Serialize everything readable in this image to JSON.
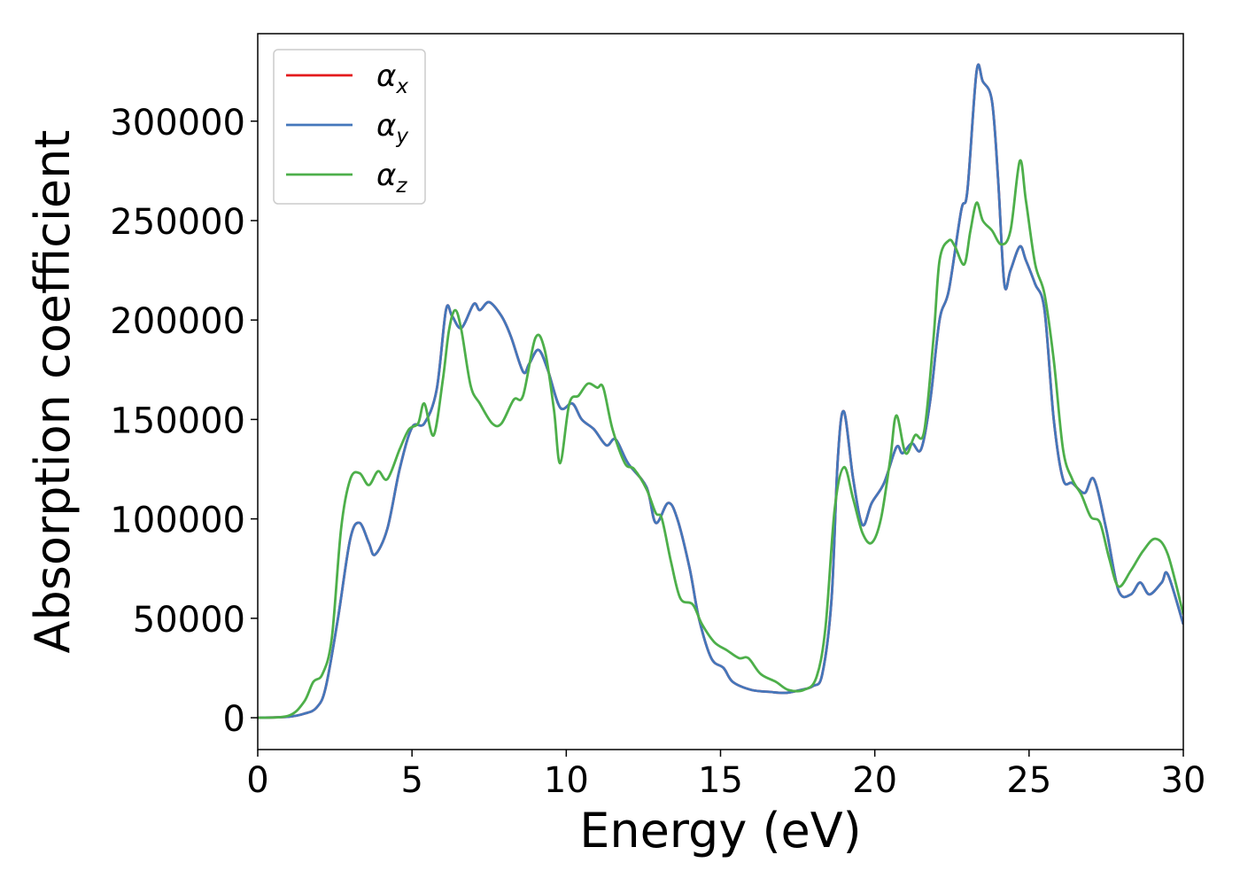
{
  "chart_data": {
    "type": "line",
    "title": "",
    "xlabel": "Energy (eV)",
    "ylabel": "Absorption coefficient",
    "xlim": [
      0,
      30
    ],
    "ylim": [
      -16000,
      344000
    ],
    "xticks": [
      "0",
      "5",
      "10",
      "15",
      "20",
      "25",
      "30"
    ],
    "xtick_values": [
      0,
      5,
      10,
      15,
      20,
      25,
      30
    ],
    "yticks": [
      "0",
      "50000",
      "100000",
      "150000",
      "200000",
      "250000",
      "300000"
    ],
    "ytick_values": [
      0,
      50000,
      100000,
      150000,
      200000,
      250000,
      300000
    ],
    "grid": false,
    "legend_position": "top-left",
    "series": [
      {
        "name": "α",
        "subscript": "x",
        "color": "#e41a1c",
        "points": [
          [
            0,
            0
          ],
          [
            1,
            500
          ],
          [
            1.5,
            2000
          ],
          [
            1.9,
            5000
          ],
          [
            2.2,
            15000
          ],
          [
            2.6,
            50000
          ],
          [
            3.0,
            90000
          ],
          [
            3.3,
            98000
          ],
          [
            3.6,
            88000
          ],
          [
            3.8,
            82000
          ],
          [
            4.2,
            95000
          ],
          [
            4.6,
            125000
          ],
          [
            5.0,
            146000
          ],
          [
            5.4,
            148000
          ],
          [
            5.8,
            165000
          ],
          [
            6.1,
            205000
          ],
          [
            6.3,
            202000
          ],
          [
            6.6,
            196000
          ],
          [
            7.0,
            208000
          ],
          [
            7.2,
            205000
          ],
          [
            7.5,
            209000
          ],
          [
            7.9,
            202000
          ],
          [
            8.2,
            192000
          ],
          [
            8.6,
            174000
          ],
          [
            8.8,
            178000
          ],
          [
            9.1,
            185000
          ],
          [
            9.4,
            175000
          ],
          [
            9.8,
            156000
          ],
          [
            10.2,
            158000
          ],
          [
            10.5,
            150000
          ],
          [
            10.9,
            145000
          ],
          [
            11.3,
            137000
          ],
          [
            11.6,
            140000
          ],
          [
            12.0,
            128000
          ],
          [
            12.6,
            116000
          ],
          [
            12.9,
            98000
          ],
          [
            13.3,
            108000
          ],
          [
            13.6,
            100000
          ],
          [
            14.0,
            75000
          ],
          [
            14.3,
            50000
          ],
          [
            14.7,
            30000
          ],
          [
            15.1,
            25000
          ],
          [
            15.4,
            18000
          ],
          [
            16.0,
            14000
          ],
          [
            16.6,
            13000
          ],
          [
            17.1,
            12500
          ],
          [
            17.6,
            14000
          ],
          [
            18.0,
            16000
          ],
          [
            18.3,
            22000
          ],
          [
            18.6,
            60000
          ],
          [
            18.8,
            130000
          ],
          [
            19.0,
            154000
          ],
          [
            19.3,
            120000
          ],
          [
            19.6,
            97000
          ],
          [
            19.9,
            108000
          ],
          [
            20.3,
            118000
          ],
          [
            20.7,
            136000
          ],
          [
            20.9,
            133000
          ],
          [
            21.2,
            138000
          ],
          [
            21.5,
            135000
          ],
          [
            21.8,
            160000
          ],
          [
            22.1,
            200000
          ],
          [
            22.4,
            215000
          ],
          [
            22.8,
            255000
          ],
          [
            23.0,
            265000
          ],
          [
            23.3,
            325000
          ],
          [
            23.5,
            320000
          ],
          [
            23.8,
            310000
          ],
          [
            24.0,
            270000
          ],
          [
            24.2,
            218000
          ],
          [
            24.4,
            225000
          ],
          [
            24.7,
            237000
          ],
          [
            24.9,
            230000
          ],
          [
            25.2,
            218000
          ],
          [
            25.5,
            205000
          ],
          [
            25.8,
            150000
          ],
          [
            26.1,
            120000
          ],
          [
            26.4,
            118000
          ],
          [
            26.8,
            113000
          ],
          [
            27.1,
            120000
          ],
          [
            27.5,
            95000
          ],
          [
            27.9,
            64000
          ],
          [
            28.3,
            62000
          ],
          [
            28.6,
            68000
          ],
          [
            28.9,
            62000
          ],
          [
            29.3,
            68000
          ],
          [
            29.5,
            72000
          ],
          [
            30.0,
            47000
          ]
        ]
      },
      {
        "name": "α",
        "subscript": "y",
        "color": "#4477bb",
        "points": [
          [
            0,
            0
          ],
          [
            1,
            500
          ],
          [
            1.5,
            2000
          ],
          [
            1.9,
            5000
          ],
          [
            2.2,
            15000
          ],
          [
            2.6,
            50000
          ],
          [
            3.0,
            90000
          ],
          [
            3.3,
            98000
          ],
          [
            3.6,
            88000
          ],
          [
            3.8,
            82000
          ],
          [
            4.2,
            95000
          ],
          [
            4.6,
            125000
          ],
          [
            5.0,
            146000
          ],
          [
            5.4,
            148000
          ],
          [
            5.8,
            165000
          ],
          [
            6.1,
            205000
          ],
          [
            6.3,
            202000
          ],
          [
            6.6,
            196000
          ],
          [
            7.0,
            208000
          ],
          [
            7.2,
            205000
          ],
          [
            7.5,
            209000
          ],
          [
            7.9,
            202000
          ],
          [
            8.2,
            192000
          ],
          [
            8.6,
            174000
          ],
          [
            8.8,
            178000
          ],
          [
            9.1,
            185000
          ],
          [
            9.4,
            175000
          ],
          [
            9.8,
            156000
          ],
          [
            10.2,
            158000
          ],
          [
            10.5,
            150000
          ],
          [
            10.9,
            145000
          ],
          [
            11.3,
            137000
          ],
          [
            11.6,
            140000
          ],
          [
            12.0,
            128000
          ],
          [
            12.6,
            116000
          ],
          [
            12.9,
            98000
          ],
          [
            13.3,
            108000
          ],
          [
            13.6,
            100000
          ],
          [
            14.0,
            75000
          ],
          [
            14.3,
            50000
          ],
          [
            14.7,
            30000
          ],
          [
            15.1,
            25000
          ],
          [
            15.4,
            18000
          ],
          [
            16.0,
            14000
          ],
          [
            16.6,
            13000
          ],
          [
            17.1,
            12500
          ],
          [
            17.6,
            14000
          ],
          [
            18.0,
            16000
          ],
          [
            18.3,
            22000
          ],
          [
            18.6,
            60000
          ],
          [
            18.8,
            130000
          ],
          [
            19.0,
            154000
          ],
          [
            19.3,
            120000
          ],
          [
            19.6,
            97000
          ],
          [
            19.9,
            108000
          ],
          [
            20.3,
            118000
          ],
          [
            20.7,
            136000
          ],
          [
            20.9,
            133000
          ],
          [
            21.2,
            138000
          ],
          [
            21.5,
            135000
          ],
          [
            21.8,
            160000
          ],
          [
            22.1,
            200000
          ],
          [
            22.4,
            215000
          ],
          [
            22.8,
            255000
          ],
          [
            23.0,
            265000
          ],
          [
            23.3,
            325000
          ],
          [
            23.5,
            320000
          ],
          [
            23.8,
            310000
          ],
          [
            24.0,
            270000
          ],
          [
            24.2,
            218000
          ],
          [
            24.4,
            225000
          ],
          [
            24.7,
            237000
          ],
          [
            24.9,
            230000
          ],
          [
            25.2,
            218000
          ],
          [
            25.5,
            205000
          ],
          [
            25.8,
            150000
          ],
          [
            26.1,
            120000
          ],
          [
            26.4,
            118000
          ],
          [
            26.8,
            113000
          ],
          [
            27.1,
            120000
          ],
          [
            27.5,
            95000
          ],
          [
            27.9,
            64000
          ],
          [
            28.3,
            62000
          ],
          [
            28.6,
            68000
          ],
          [
            28.9,
            62000
          ],
          [
            29.3,
            68000
          ],
          [
            29.5,
            72000
          ],
          [
            30.0,
            47000
          ]
        ]
      },
      {
        "name": "α",
        "subscript": "z",
        "color": "#4daf4a",
        "points": [
          [
            0,
            0
          ],
          [
            1,
            1000
          ],
          [
            1.5,
            8000
          ],
          [
            1.8,
            18000
          ],
          [
            2.1,
            22000
          ],
          [
            2.4,
            40000
          ],
          [
            2.7,
            95000
          ],
          [
            3.0,
            120000
          ],
          [
            3.3,
            123000
          ],
          [
            3.6,
            117000
          ],
          [
            3.9,
            124000
          ],
          [
            4.2,
            120000
          ],
          [
            4.6,
            135000
          ],
          [
            4.9,
            145000
          ],
          [
            5.2,
            148000
          ],
          [
            5.4,
            158000
          ],
          [
            5.7,
            142000
          ],
          [
            6.0,
            170000
          ],
          [
            6.2,
            195000
          ],
          [
            6.4,
            205000
          ],
          [
            6.6,
            195000
          ],
          [
            6.9,
            167000
          ],
          [
            7.2,
            158000
          ],
          [
            7.6,
            148000
          ],
          [
            7.9,
            148000
          ],
          [
            8.3,
            160000
          ],
          [
            8.6,
            162000
          ],
          [
            9.0,
            191000
          ],
          [
            9.3,
            185000
          ],
          [
            9.6,
            155000
          ],
          [
            9.8,
            128000
          ],
          [
            10.1,
            158000
          ],
          [
            10.4,
            162000
          ],
          [
            10.7,
            168000
          ],
          [
            11.0,
            166000
          ],
          [
            11.2,
            166000
          ],
          [
            11.5,
            145000
          ],
          [
            11.9,
            128000
          ],
          [
            12.2,
            125000
          ],
          [
            12.6,
            115000
          ],
          [
            12.9,
            103000
          ],
          [
            13.1,
            100000
          ],
          [
            13.4,
            78000
          ],
          [
            13.7,
            60000
          ],
          [
            14.1,
            57000
          ],
          [
            14.4,
            47000
          ],
          [
            14.8,
            38000
          ],
          [
            15.2,
            34000
          ],
          [
            15.6,
            30000
          ],
          [
            15.9,
            30000
          ],
          [
            16.3,
            22000
          ],
          [
            16.8,
            18000
          ],
          [
            17.2,
            14000
          ],
          [
            17.7,
            14000
          ],
          [
            18.1,
            20000
          ],
          [
            18.4,
            45000
          ],
          [
            18.7,
            105000
          ],
          [
            19.0,
            126000
          ],
          [
            19.3,
            110000
          ],
          [
            19.6,
            93000
          ],
          [
            19.9,
            88000
          ],
          [
            20.2,
            100000
          ],
          [
            20.5,
            130000
          ],
          [
            20.7,
            152000
          ],
          [
            21.0,
            133000
          ],
          [
            21.3,
            142000
          ],
          [
            21.6,
            144000
          ],
          [
            21.9,
            190000
          ],
          [
            22.1,
            230000
          ],
          [
            22.4,
            240000
          ],
          [
            22.6,
            237000
          ],
          [
            22.9,
            228000
          ],
          [
            23.1,
            245000
          ],
          [
            23.3,
            259000
          ],
          [
            23.5,
            250000
          ],
          [
            23.8,
            245000
          ],
          [
            24.1,
            238000
          ],
          [
            24.4,
            245000
          ],
          [
            24.7,
            280000
          ],
          [
            24.9,
            260000
          ],
          [
            25.2,
            228000
          ],
          [
            25.5,
            213000
          ],
          [
            25.8,
            180000
          ],
          [
            26.1,
            135000
          ],
          [
            26.4,
            120000
          ],
          [
            26.7,
            112000
          ],
          [
            27.0,
            101000
          ],
          [
            27.3,
            98000
          ],
          [
            27.6,
            80000
          ],
          [
            27.9,
            66000
          ],
          [
            28.3,
            74000
          ],
          [
            28.7,
            84000
          ],
          [
            29.1,
            90000
          ],
          [
            29.5,
            82000
          ],
          [
            30.0,
            52000
          ]
        ]
      }
    ]
  }
}
